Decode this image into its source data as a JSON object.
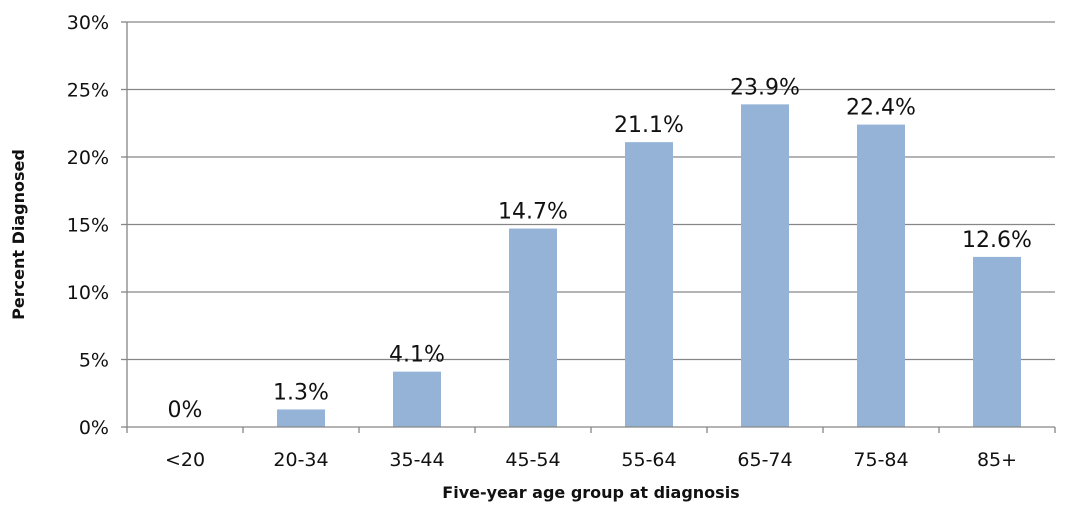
{
  "colors": {
    "bar": "#95B3D7",
    "grid": "#868686",
    "axis": "#868686",
    "text": "#111111"
  },
  "chart_data": {
    "type": "bar",
    "categories": [
      "<20",
      "20-34",
      "35-44",
      "45-54",
      "55-64",
      "65-74",
      "75-84",
      "85+"
    ],
    "values": [
      0,
      1.3,
      4.1,
      14.7,
      21.1,
      23.9,
      22.4,
      12.6
    ],
    "data_labels": [
      "0%",
      "1.3%",
      "4.1%",
      "14.7%",
      "21.1%",
      "23.9%",
      "22.4%",
      "12.6%"
    ],
    "ylim": [
      0,
      30
    ],
    "yticks": [
      0,
      5,
      10,
      15,
      20,
      25,
      30
    ],
    "ytick_labels": [
      "0%",
      "5%",
      "10%",
      "15%",
      "20%",
      "25%",
      "30%"
    ],
    "xlabel": "Five-year age group at diagnosis",
    "ylabel": "Percent Diagnosed",
    "grid": true,
    "legend": "none"
  }
}
